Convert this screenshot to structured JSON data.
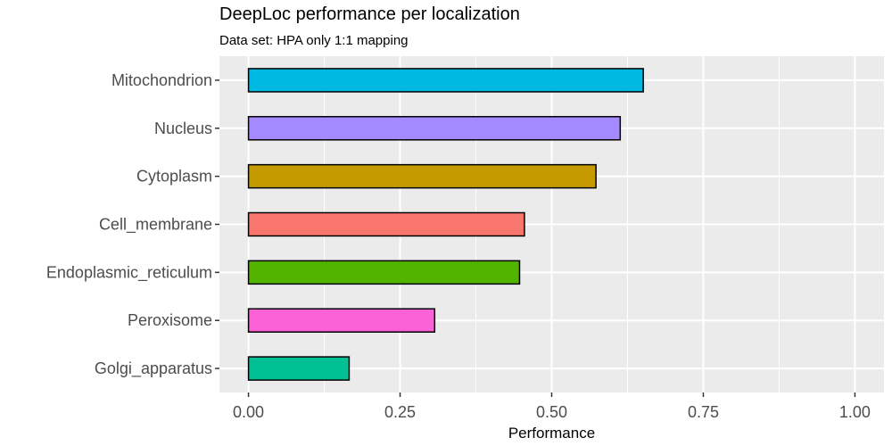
{
  "chart_data": {
    "type": "bar",
    "orientation": "horizontal",
    "title": "DeepLoc performance per localization",
    "subtitle": "Data set: HPA only 1:1 mapping",
    "xlabel": "Performance",
    "ylabel": "",
    "xlim": [
      0,
      1
    ],
    "x_ticks": [
      "0.00",
      "0.25",
      "0.50",
      "0.75",
      "1.00"
    ],
    "x_tick_values": [
      0,
      0.25,
      0.5,
      0.75,
      1.0
    ],
    "grid": true,
    "categories": [
      "Mitochondrion",
      "Nucleus",
      "Cytoplasm",
      "Cell_membrane",
      "Endoplasmic_reticulum",
      "Peroxisome",
      "Golgi_apparatus"
    ],
    "values": [
      0.651,
      0.613,
      0.573,
      0.455,
      0.447,
      0.307,
      0.166
    ],
    "colors": [
      "#00b9e3",
      "#a58aff",
      "#c49a00",
      "#f8766d",
      "#53b400",
      "#fb61d7",
      "#00c094"
    ],
    "panel_background": "#ebebeb",
    "bar_border": "#000000"
  }
}
